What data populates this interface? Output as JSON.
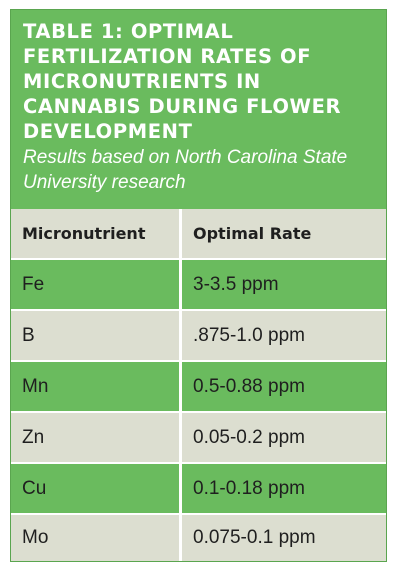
{
  "table": {
    "title": "TABLE 1: OPTIMAL FERTILIZATION RATES OF MICRONUTRIENTS IN CANNABIS DURING FLOWER DEVELOPMENT",
    "subtitle": "Results based on North Carolina State University research",
    "columns": [
      "Micronutrient",
      "Optimal Rate"
    ],
    "rows": [
      {
        "nutrient": "Fe",
        "rate": "3-3.5 ppm"
      },
      {
        "nutrient": "B",
        "rate": ".875-1.0 ppm"
      },
      {
        "nutrient": "Mn",
        "rate": "0.5-0.88 ppm"
      },
      {
        "nutrient": "Zn",
        "rate": "0.05-0.2 ppm"
      },
      {
        "nutrient": "Cu",
        "rate": "0.1-0.18 ppm"
      },
      {
        "nutrient": "Mo",
        "rate": "0.075-0.1 ppm"
      }
    ]
  },
  "colors": {
    "green": "#6abb5e",
    "grey": "#dcded0",
    "text": "#1f1f1f"
  }
}
